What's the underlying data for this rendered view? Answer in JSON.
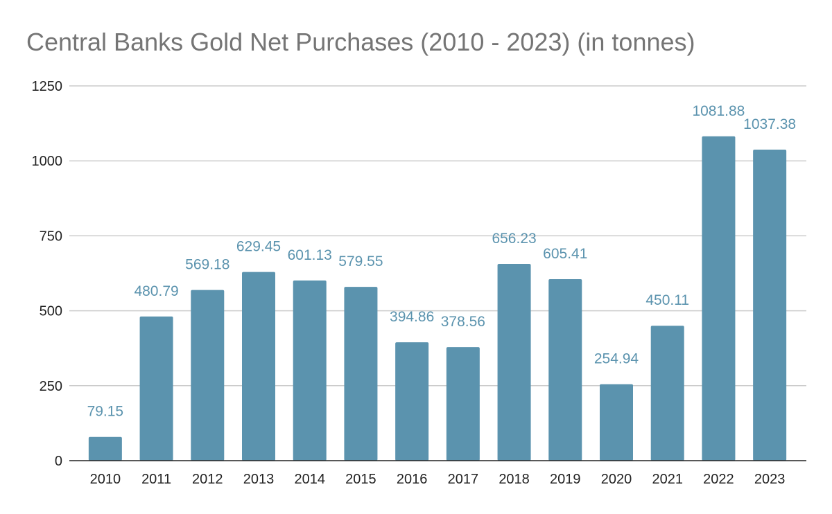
{
  "chart_data": {
    "type": "bar",
    "title": "Central Banks Gold Net Purchases (2010 - 2023) (in tonnes)",
    "xlabel": "",
    "ylabel": "",
    "categories": [
      "2010",
      "2011",
      "2012",
      "2013",
      "2014",
      "2015",
      "2016",
      "2017",
      "2018",
      "2019",
      "2020",
      "2021",
      "2022",
      "2023"
    ],
    "values": [
      79.15,
      480.79,
      569.18,
      629.45,
      601.13,
      579.55,
      394.86,
      378.56,
      656.23,
      605.41,
      254.94,
      450.11,
      1081.88,
      1037.38
    ],
    "data_labels": [
      "79.15",
      "480.79",
      "569.18",
      "629.45",
      "601.13",
      "579.55",
      "394.86",
      "378.56",
      "656.23",
      "605.41",
      "254.94",
      "450.11",
      "1081.88",
      "1037.38"
    ],
    "ylim": [
      0,
      1250
    ],
    "yticks": [
      "0",
      "250",
      "500",
      "750",
      "1000",
      "1250"
    ],
    "grid": true,
    "legend": "none",
    "colors": {
      "bar": "#5b93ae",
      "label": "#5b93ae",
      "title": "#757575",
      "grid": "#cccccc",
      "axis": "#222222"
    }
  }
}
